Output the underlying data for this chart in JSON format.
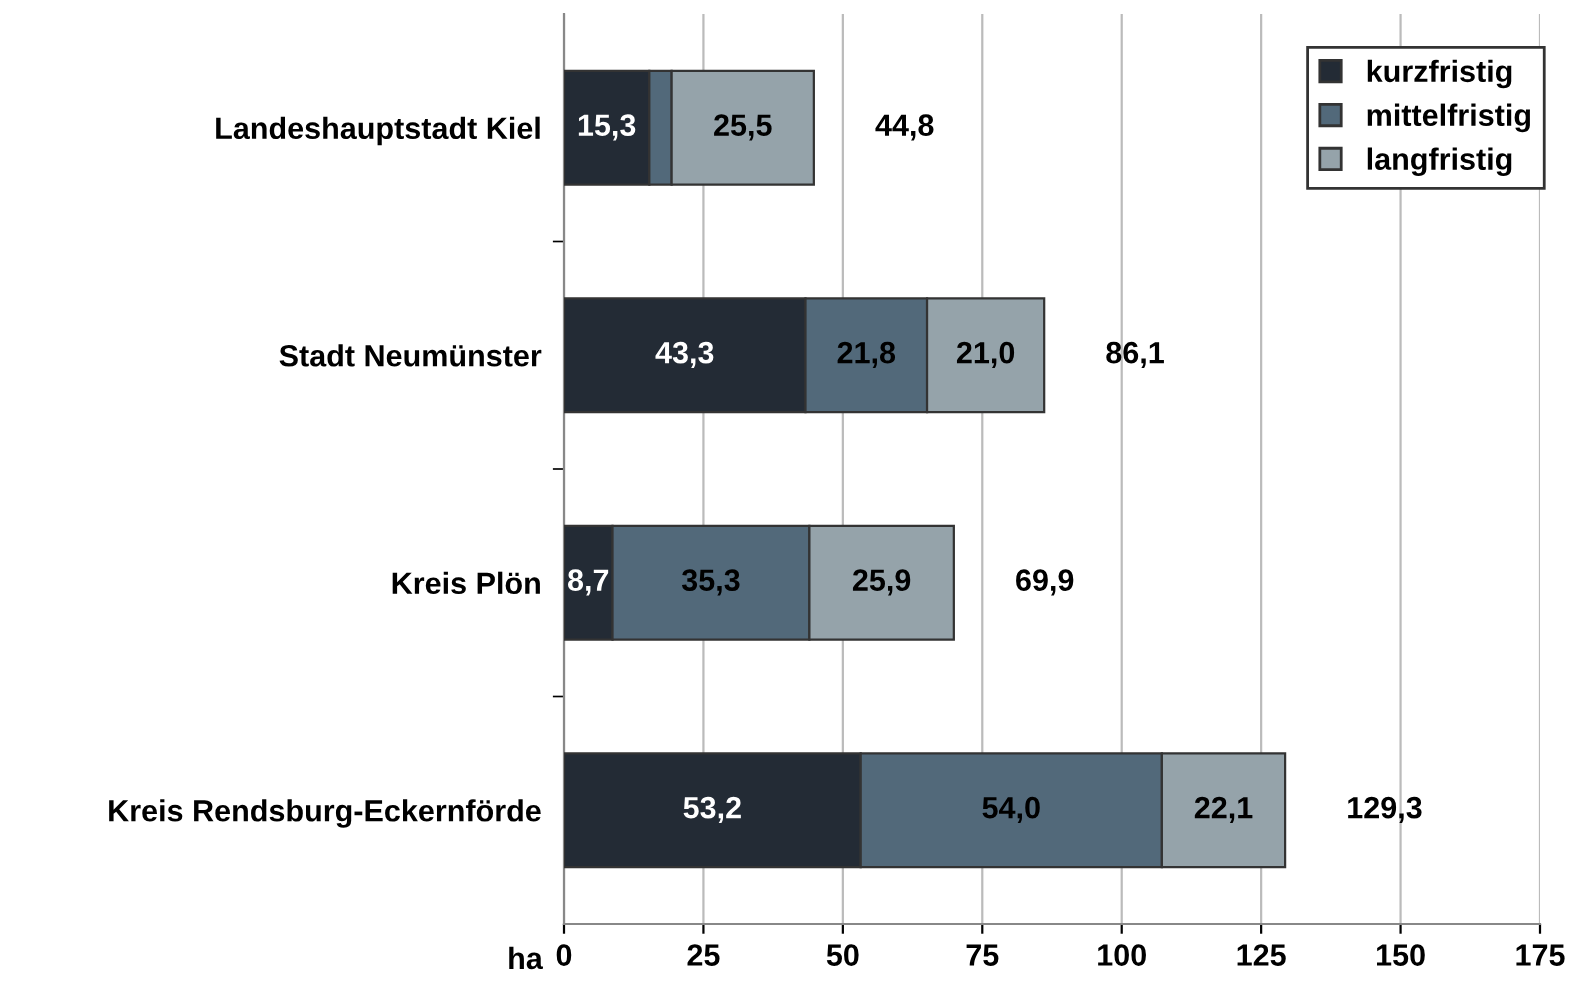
{
  "chart_data": {
    "type": "bar",
    "orientation": "horizontal",
    "stacked": true,
    "xlabel": "ha",
    "categories": [
      "Landeshauptstadt Kiel",
      "Stadt Neumünster",
      "Kreis Plön",
      "Kreis Rendsburg-Eckernförde"
    ],
    "series": [
      {
        "name": "kurzfristig",
        "color": "#232b35",
        "values": [
          15.3,
          43.3,
          8.7,
          53.2
        ],
        "value_labels": [
          "15,3",
          "43,3",
          "8,7",
          "53,2"
        ]
      },
      {
        "name": "mittelfristig",
        "color": "#52697a",
        "values": [
          4.0,
          21.8,
          35.3,
          54.0
        ],
        "value_labels": [
          null,
          "21,8",
          "35,3",
          "54,0"
        ]
      },
      {
        "name": "langfristig",
        "color": "#95a3aa",
        "values": [
          25.5,
          21.0,
          25.9,
          22.1
        ],
        "value_labels": [
          "25,5",
          "21,0",
          "25,9",
          "22,1"
        ]
      }
    ],
    "totals": [
      "44,8",
      "86,1",
      "69,9",
      "129,3"
    ],
    "xlim": [
      0,
      175
    ],
    "xticks": [
      0,
      25,
      50,
      75,
      100,
      125,
      150,
      175
    ],
    "grid": "x",
    "legend": "top right"
  }
}
